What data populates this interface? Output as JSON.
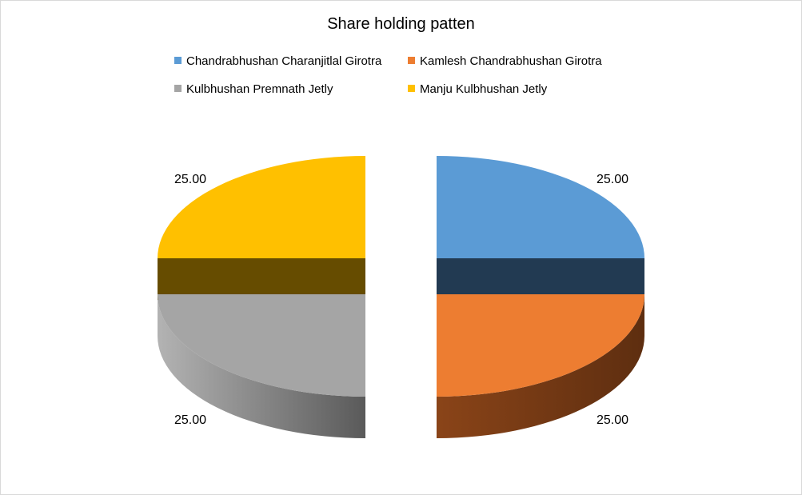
{
  "chart_data": {
    "type": "pie",
    "title": "Share holding patten",
    "legend_position": "top",
    "series": [
      {
        "name": "Chandrabhushan  Charanjitlal Girotra",
        "value": 25.0,
        "label": "25.00",
        "color": "#5b9bd5",
        "side_color": "#223a52"
      },
      {
        "name": "Kamlesh Chandrabhushan  Girotra",
        "value": 25.0,
        "label": "25.00",
        "color": "#ed7d31",
        "side_color": "#6b3413"
      },
      {
        "name": "Kulbhushan  Premnath Jetly",
        "value": 25.0,
        "label": "25.00",
        "color": "#a5a5a5",
        "side_color": "#5e5e5e"
      },
      {
        "name": "Manju Kulbhushan  Jetly",
        "value": 25.0,
        "label": "25.00",
        "color": "#ffc000",
        "side_color": "#664c00"
      }
    ]
  }
}
